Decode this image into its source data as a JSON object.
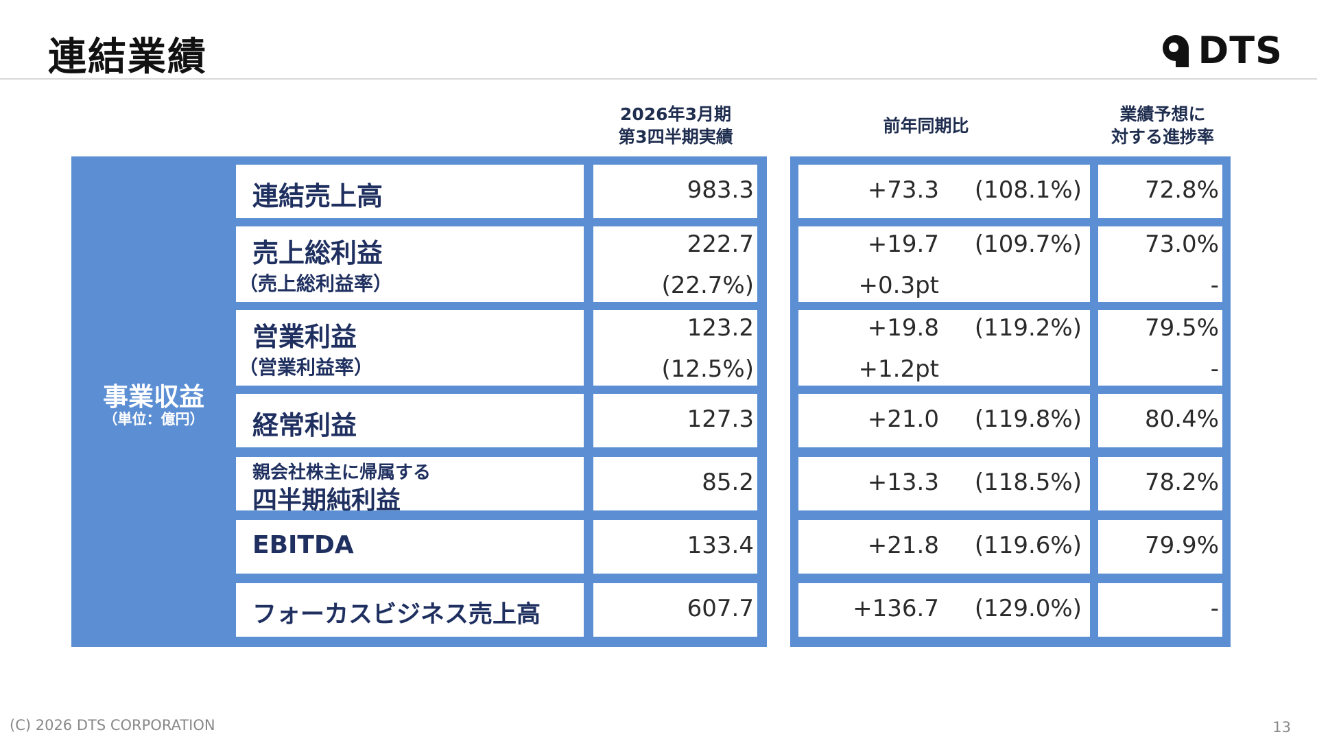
{
  "title": "連結業績",
  "logo": {
    "text": "DTS",
    "icon": "dts-logo-mark"
  },
  "headers": {
    "current_line1": "2026年3月期",
    "current_line2": "第3四半期実績",
    "yoy": "前年同期比",
    "progress_line1": "業績予想に",
    "progress_line2": "対する進捗率"
  },
  "segment": {
    "label": "事業収益",
    "unit": "（単位：億円）"
  },
  "rows": [
    {
      "label": "連結売上高",
      "value": "983.3",
      "yoy_diff": "+73.3",
      "yoy_pct": "(108.1%)",
      "progress": "72.8%"
    },
    {
      "label": "売上総利益",
      "sublabel": "（売上総利益率）",
      "value": "222.7",
      "subvalue": "(22.7%)",
      "yoy_diff": "+19.7",
      "yoy_pct": "(109.7%)",
      "yoy_sub": "+0.3pt",
      "progress": "73.0%",
      "progress_sub": "-"
    },
    {
      "label": "営業利益",
      "sublabel": "（営業利益率）",
      "value": "123.2",
      "subvalue": "(12.5%)",
      "yoy_diff": "+19.8",
      "yoy_pct": "(119.2%)",
      "yoy_sub": "+1.2pt",
      "progress": "79.5%",
      "progress_sub": "-"
    },
    {
      "label": "経常利益",
      "value": "127.3",
      "yoy_diff": "+21.0",
      "yoy_pct": "(119.8%)",
      "progress": "80.4%"
    },
    {
      "label_line1": "親会社株主に帰属する",
      "label_line2": "四半期純利益",
      "value": "85.2",
      "yoy_diff": "+13.3",
      "yoy_pct": "(118.5%)",
      "progress": "78.2%"
    },
    {
      "label": "EBITDA",
      "value": "133.4",
      "yoy_diff": "+21.8",
      "yoy_pct": "(119.6%)",
      "progress": "79.9%"
    },
    {
      "label": "フォーカスビジネス売上高",
      "value": "607.7",
      "yoy_diff": "+136.7",
      "yoy_pct": "(129.0%)",
      "progress": "-"
    }
  ],
  "footer": "(C) 2026 DTS CORPORATION",
  "page_number": "13"
}
